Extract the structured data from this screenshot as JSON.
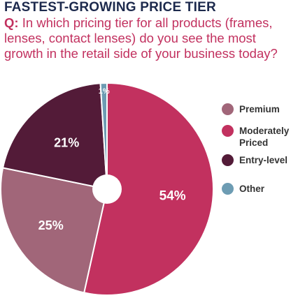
{
  "header": {
    "title": "FASTEST-GROWING PRICE TIER",
    "question_prefix": "Q:",
    "question_text": "In which pricing tier for all products (frames, lenses, contact lenses) do you see the most growth in the retail side of your business today?"
  },
  "chart_data": {
    "type": "pie",
    "title": "FASTEST-GROWING PRICE TIER",
    "donut_hole": true,
    "legend_position": "right",
    "slices": [
      {
        "name": "Moderately Priced",
        "value": 54,
        "label": "54%",
        "color": "#c2315f"
      },
      {
        "name": "Premium",
        "value": 25,
        "label": "25%",
        "color": "#a16679"
      },
      {
        "name": "Entry-level",
        "value": 21,
        "label": "21%",
        "color": "#531b38"
      },
      {
        "name": "Other",
        "value": 1,
        "label": "1%",
        "color": "#6d9cb3"
      }
    ],
    "legend": [
      {
        "label": "Premium",
        "color": "#a16679"
      },
      {
        "label": "Moderately Priced",
        "color": "#c2315f"
      },
      {
        "label": "Entry-level",
        "color": "#531b38"
      },
      {
        "label": "Other",
        "color": "#6d9cb3"
      }
    ]
  }
}
